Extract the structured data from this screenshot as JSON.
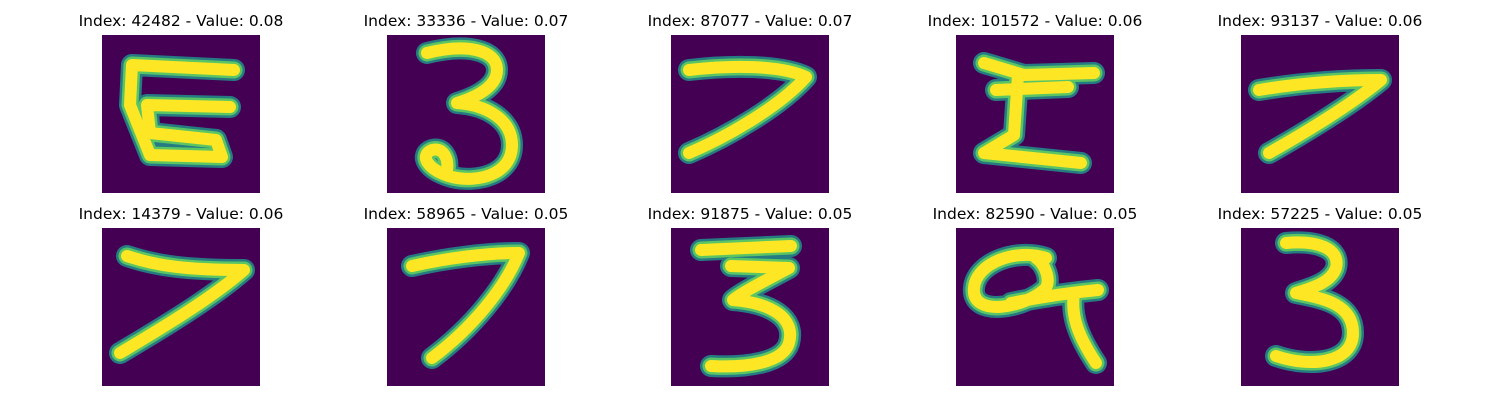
{
  "colors": {
    "background": "#440154",
    "stroke_edge": "#21918c",
    "stroke_mid": "#5ec962",
    "stroke_core": "#fde725"
  },
  "panels": [
    {
      "title": "Index: 42482 - Value: 0.08",
      "digit_icon": "digit-5-icon"
    },
    {
      "title": "Index: 33336 - Value: 0.07",
      "digit_icon": "digit-3-icon"
    },
    {
      "title": "Index: 87077 - Value: 0.07",
      "digit_icon": "digit-7-icon"
    },
    {
      "title": "Index: 101572 - Value: 0.06",
      "digit_icon": "digit-5-icon"
    },
    {
      "title": "Index: 93137 - Value: 0.06",
      "digit_icon": "digit-7-icon"
    },
    {
      "title": "Index: 14379 - Value: 0.06",
      "digit_icon": "digit-7-icon"
    },
    {
      "title": "Index: 58965 - Value: 0.05",
      "digit_icon": "digit-7-icon"
    },
    {
      "title": "Index: 91875 - Value: 0.05",
      "digit_icon": "digit-3-icon"
    },
    {
      "title": "Index: 82590 - Value: 0.05",
      "digit_icon": "digit-9-icon"
    },
    {
      "title": "Index: 57225 - Value: 0.05",
      "digit_icon": "digit-3-icon"
    }
  ]
}
